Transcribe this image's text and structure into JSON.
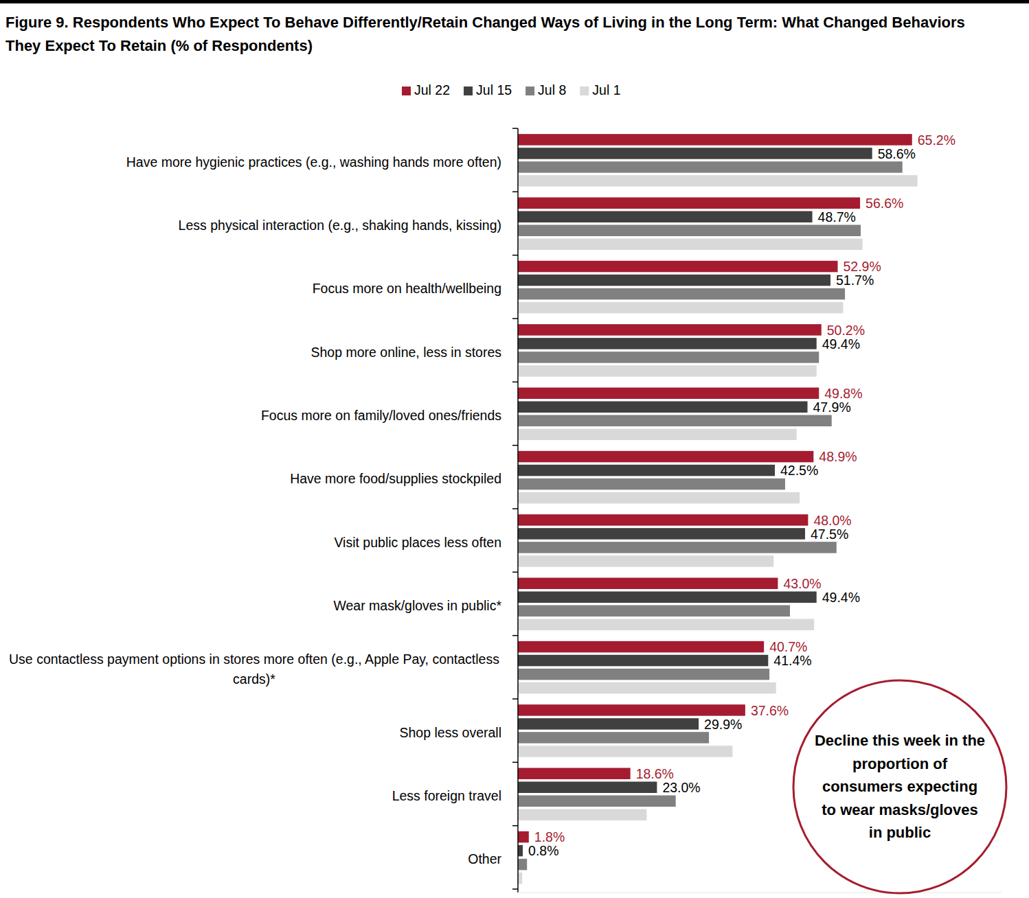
{
  "chart_data": {
    "type": "bar",
    "orientation": "horizontal",
    "title": "Figure 9. Respondents Who Expect To Behave Differently/Retain Changed Ways of Living in the Long Term: What Changed Behaviors They Expect To Retain (% of Respondents)",
    "categories": [
      "Have more hygienic practices (e.g., washing hands more often)",
      "Less physical interaction (e.g., shaking hands, kissing)",
      "Focus more on health/wellbeing",
      "Shop more online, less in stores",
      "Focus more on family/loved ones/friends",
      "Have more food/supplies stockpiled",
      "Visit public places less often",
      "Wear mask/gloves in public*",
      "Use contactless payment options in stores more often (e.g., Apple Pay, contactless cards)*",
      "Shop less overall",
      "Less foreign travel",
      "Other"
    ],
    "series": [
      {
        "name": "Jul 22",
        "color": "#a51c30",
        "data_labels": true,
        "values": [
          65.2,
          56.6,
          52.9,
          50.2,
          49.8,
          48.9,
          48.0,
          43.0,
          40.7,
          37.6,
          18.6,
          1.8
        ],
        "value_labels": [
          "65.2%",
          "56.6%",
          "52.9%",
          "50.2%",
          "49.8%",
          "48.9%",
          "48.0%",
          "43.0%",
          "40.7%",
          "37.6%",
          "18.6%",
          "1.8%"
        ]
      },
      {
        "name": "Jul 15",
        "color": "#404040",
        "data_labels": true,
        "values": [
          58.6,
          48.7,
          51.7,
          49.4,
          47.9,
          42.5,
          47.5,
          49.4,
          41.4,
          29.9,
          23.0,
          0.8
        ],
        "value_labels": [
          "58.6%",
          "48.7%",
          "51.7%",
          "49.4%",
          "47.9%",
          "42.5%",
          "47.5%",
          "49.4%",
          "41.4%",
          "29.9%",
          "23.0%",
          "0.8%"
        ]
      },
      {
        "name": "Jul 8",
        "color": "#808080",
        "data_labels": false,
        "values": [
          63.6,
          56.7,
          54.1,
          49.8,
          51.9,
          44.2,
          52.7,
          45.0,
          41.6,
          31.6,
          26.1,
          1.5
        ]
      },
      {
        "name": "Jul 1",
        "color": "#d9d9d9",
        "data_labels": false,
        "values": [
          66.1,
          57.0,
          53.8,
          49.4,
          46.1,
          46.6,
          42.3,
          49.0,
          42.7,
          35.5,
          21.3,
          0.7
        ]
      }
    ],
    "xlim": [
      0,
      80
    ],
    "tick_labels": "y",
    "grid": false,
    "legend": "top",
    "annotations": [
      "Decline this week in the proportion of consumers expecting to wear masks/gloves in public"
    ]
  }
}
